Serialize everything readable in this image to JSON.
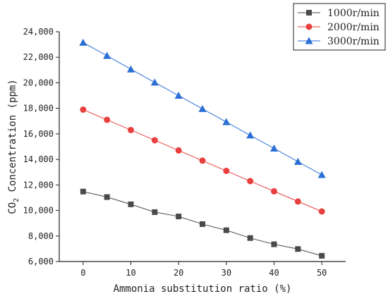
{
  "chart_data": {
    "type": "line",
    "title": "",
    "xlabel": "Ammonia substitution ratio (%)",
    "ylabel": {
      "prefix": "CO",
      "sub": "2",
      "suffix": " Concentration (ppm)"
    },
    "x": [
      0,
      5,
      10,
      15,
      20,
      25,
      30,
      35,
      40,
      45,
      50
    ],
    "xlim": [
      -5,
      55
    ],
    "ylim": [
      6000,
      24000
    ],
    "xticks": [
      0,
      10,
      20,
      30,
      40,
      50
    ],
    "xtick_labels": [
      "0",
      "10",
      "20",
      "30",
      "40",
      "50"
    ],
    "yticks": [
      6000,
      8000,
      10000,
      12000,
      14000,
      16000,
      18000,
      20000,
      22000,
      24000
    ],
    "ytick_labels": [
      "6,000",
      "8,000",
      "10,000",
      "12,000",
      "14,000",
      "16,000",
      "18,000",
      "20,000",
      "22,000",
      "24,000"
    ],
    "legend_position": "top-right, outside",
    "grid": false,
    "series": [
      {
        "name": "1000r/min",
        "color": "#4a4a4a",
        "marker": "square",
        "values": [
          11480,
          11050,
          10480,
          9870,
          9530,
          8930,
          8450,
          7840,
          7350,
          6980,
          6450
        ]
      },
      {
        "name": "2000r/min",
        "color": "#e8403f",
        "marker": "circle",
        "values": [
          17900,
          17100,
          16300,
          15500,
          14700,
          13900,
          13100,
          12300,
          11500,
          10700,
          9920
        ]
      },
      {
        "name": "3000r/min",
        "color": "#2a6fd6",
        "marker": "triangle",
        "values": [
          23150,
          22120,
          21060,
          20030,
          19000,
          17960,
          16930,
          15890,
          14860,
          13820,
          12790
        ]
      }
    ]
  }
}
